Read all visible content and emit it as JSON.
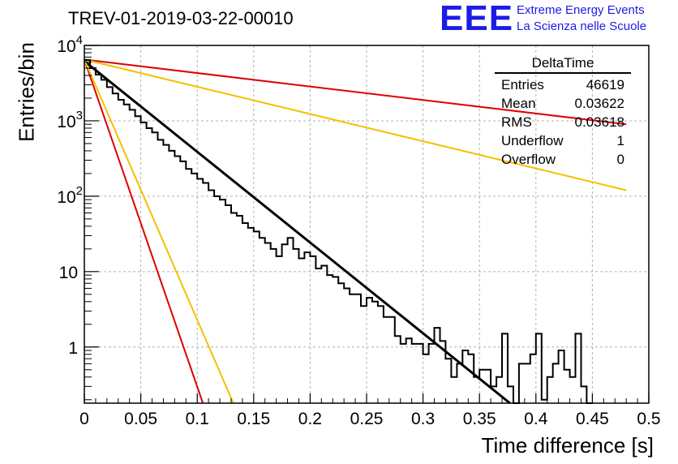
{
  "header": {
    "title": "TREV-01-2019-03-22-00010",
    "logo_text": "EEE",
    "logo_line1": "Extreme Energy Events",
    "logo_line2": "La Scienza nelle Scuole",
    "logo_color": "#1c1ce6"
  },
  "stats_box": {
    "title": "DeltaTime",
    "rows": [
      {
        "label": "Entries",
        "value": "46619"
      },
      {
        "label": "Mean",
        "value": "0.03622"
      },
      {
        "label": "RMS",
        "value": "0.03618"
      },
      {
        "label": "Underflow",
        "value": "1"
      },
      {
        "label": "Overflow",
        "value": "0"
      }
    ]
  },
  "chart_data": {
    "type": "line",
    "title": "TREV-01-2019-03-22-00010",
    "xlabel": "Time difference [s]",
    "ylabel": "Entries/bin",
    "xlim": [
      0,
      0.5
    ],
    "ylim": [
      0.18,
      10000
    ],
    "y_scale": "log",
    "grid": true,
    "x_ticks": [
      "0",
      "0.05",
      "0.1",
      "0.15",
      "0.2",
      "0.25",
      "0.3",
      "0.35",
      "0.4",
      "0.45",
      "0.5"
    ],
    "y_ticks": [
      {
        "value": 1,
        "label": "1"
      },
      {
        "value": 10,
        "label": "10"
      },
      {
        "value": 100,
        "label": "10^2"
      },
      {
        "value": 1000,
        "label": "10^3"
      },
      {
        "value": 10000,
        "label": "10^4"
      }
    ],
    "histogram": {
      "bin_width": 0.005,
      "values": [
        6400,
        5000,
        4100,
        3500,
        2800,
        2300,
        1900,
        1650,
        1400,
        1150,
        950,
        800,
        700,
        560,
        480,
        400,
        340,
        290,
        230,
        200,
        170,
        150,
        120,
        100,
        90,
        76,
        60,
        55,
        44,
        38,
        34,
        28,
        24,
        20,
        16,
        23,
        28,
        20,
        15,
        18,
        16,
        11,
        12,
        9,
        8.5,
        7,
        6,
        5,
        5,
        3.5,
        4.5,
        4,
        3.5,
        2.5,
        2.5,
        1.4,
        1.1,
        1.3,
        1.1,
        1.1,
        0.8,
        1.1,
        1.8,
        1.2,
        0.7,
        0.4,
        0.6,
        0.9,
        0.8,
        0.4,
        0.5,
        0.5,
        0.3,
        0.4,
        1.5,
        0.3,
        0.1,
        0.6,
        0.6,
        0.8,
        1.5,
        0.2,
        0.4,
        0.6,
        0.9,
        0.5,
        0.4,
        1.5,
        0.3,
        0.1
      ]
    },
    "histogram_line_color": "#000000",
    "series": [
      {
        "color": "#000000",
        "points": [
          [
            0,
            6200
          ],
          [
            0.377,
            0.18
          ]
        ]
      },
      {
        "color": "#dd0000",
        "points": [
          [
            0,
            6500
          ],
          [
            0.48,
            900
          ]
        ]
      },
      {
        "color": "#f5c000",
        "points": [
          [
            0,
            6500
          ],
          [
            0.48,
            120
          ]
        ]
      },
      {
        "color": "#dd0000",
        "points": [
          [
            0,
            6500
          ],
          [
            0.105,
            0.18
          ]
        ]
      },
      {
        "color": "#f5c000",
        "points": [
          [
            0,
            6500
          ],
          [
            0.132,
            0.18
          ]
        ]
      }
    ]
  }
}
